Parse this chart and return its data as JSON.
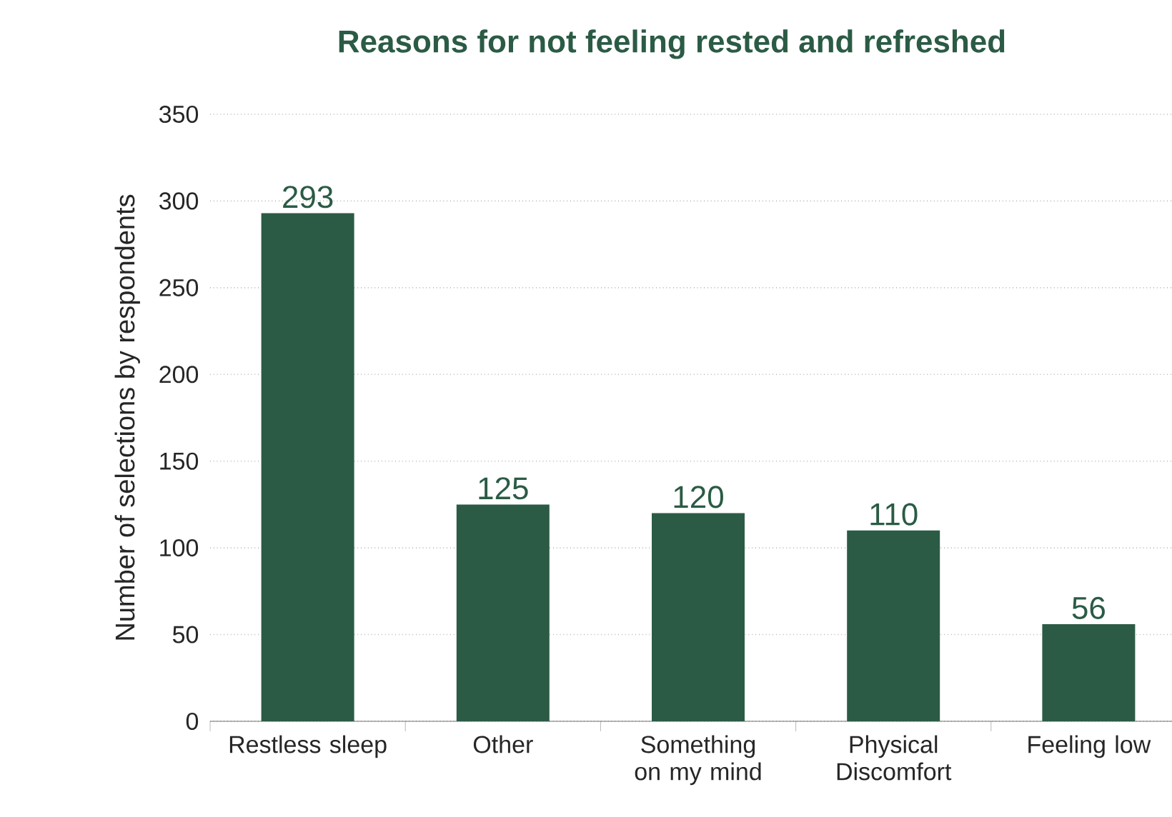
{
  "chart_data": {
    "type": "bar",
    "title": "Reasons for not feeling rested and refreshed",
    "ylabel": "Number of selections by respondents",
    "categories": [
      "Restless sleep",
      "Other",
      "Something on my mind",
      "Physical Discomfort",
      "Feeling low"
    ],
    "values": [
      293,
      125,
      120,
      110,
      56
    ],
    "color": "#2b5b45",
    "ylim": [
      0,
      350
    ],
    "yticks": [
      0,
      50,
      100,
      150,
      200,
      250,
      300,
      350
    ],
    "grid": "y",
    "data_labels": true
  }
}
